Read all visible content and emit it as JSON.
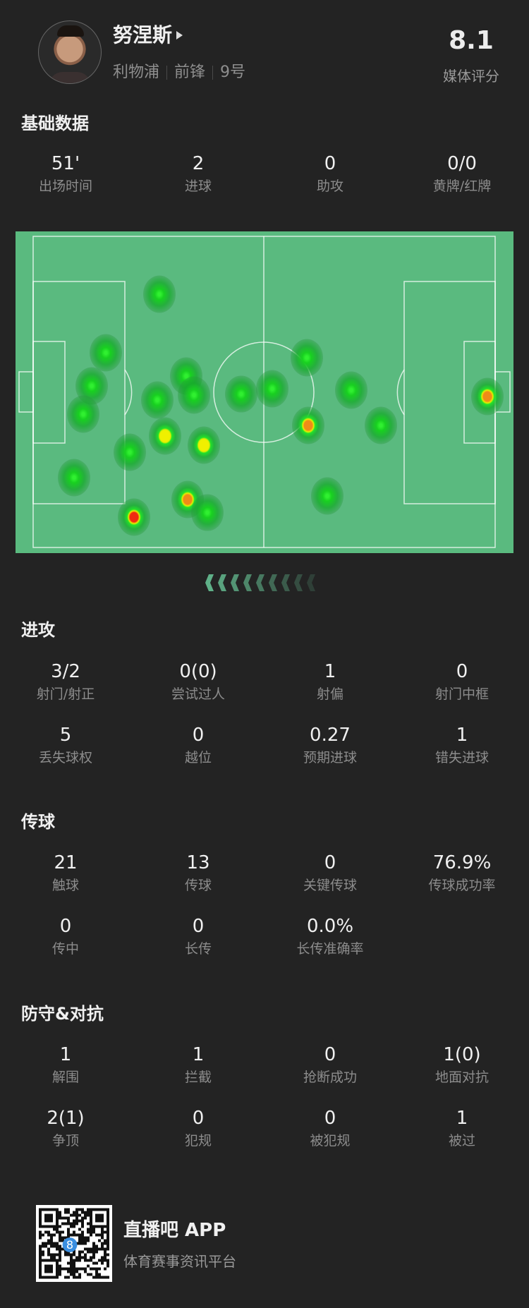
{
  "player": {
    "name": "努涅斯",
    "team": "利物浦",
    "position": "前锋",
    "number": "9号",
    "rating": "8.1",
    "rating_label": "媒体评分"
  },
  "basic": {
    "title": "基础数据",
    "stats": [
      {
        "value": "51'",
        "label": "出场时间"
      },
      {
        "value": "2",
        "label": "进球"
      },
      {
        "value": "0",
        "label": "助攻"
      },
      {
        "value": "0/0",
        "label": "黄牌/红牌"
      }
    ]
  },
  "heatmap": {
    "pitch_color": "#5aba7f",
    "points": [
      {
        "x": 27.4,
        "y": 18.6,
        "intensity": 1
      },
      {
        "x": 15.8,
        "y": 37.4,
        "intensity": 1
      },
      {
        "x": 12.7,
        "y": 48.1,
        "intensity": 1
      },
      {
        "x": 10.9,
        "y": 57.2,
        "intensity": 1
      },
      {
        "x": 8.9,
        "y": 77.6,
        "intensity": 1
      },
      {
        "x": 20.9,
        "y": 69.4,
        "intensity": 1
      },
      {
        "x": 26.9,
        "y": 52.6,
        "intensity": 1
      },
      {
        "x": 33.2,
        "y": 44.9,
        "intensity": 1
      },
      {
        "x": 34.8,
        "y": 51.0,
        "intensity": 1
      },
      {
        "x": 28.6,
        "y": 64.1,
        "intensity": 2
      },
      {
        "x": 36.9,
        "y": 67.2,
        "intensity": 2
      },
      {
        "x": 45.1,
        "y": 50.7,
        "intensity": 1
      },
      {
        "x": 51.8,
        "y": 48.9,
        "intensity": 1
      },
      {
        "x": 59.3,
        "y": 39.0,
        "intensity": 1
      },
      {
        "x": 68.9,
        "y": 49.5,
        "intensity": 1
      },
      {
        "x": 59.6,
        "y": 60.8,
        "intensity": 3
      },
      {
        "x": 75.3,
        "y": 60.8,
        "intensity": 1
      },
      {
        "x": 63.6,
        "y": 83.5,
        "intensity": 1
      },
      {
        "x": 98.3,
        "y": 51.4,
        "intensity": 3
      },
      {
        "x": 33.5,
        "y": 84.6,
        "intensity": 3
      },
      {
        "x": 37.7,
        "y": 88.8,
        "intensity": 1
      },
      {
        "x": 21.8,
        "y": 90.3,
        "intensity": 4
      }
    ]
  },
  "attack": {
    "title": "进攻",
    "stats": [
      {
        "value": "3/2",
        "label": "射门/射正"
      },
      {
        "value": "0(0)",
        "label": "尝试过人"
      },
      {
        "value": "1",
        "label": "射偏"
      },
      {
        "value": "0",
        "label": "射门中框"
      },
      {
        "value": "5",
        "label": "丢失球权"
      },
      {
        "value": "0",
        "label": "越位"
      },
      {
        "value": "0.27",
        "label": "预期进球"
      },
      {
        "value": "1",
        "label": "错失进球"
      }
    ]
  },
  "passing": {
    "title": "传球",
    "stats": [
      {
        "value": "21",
        "label": "触球"
      },
      {
        "value": "13",
        "label": "传球"
      },
      {
        "value": "0",
        "label": "关键传球"
      },
      {
        "value": "76.9%",
        "label": "传球成功率"
      },
      {
        "value": "0",
        "label": "传中"
      },
      {
        "value": "0",
        "label": "长传"
      },
      {
        "value": "0.0%",
        "label": "长传准确率"
      }
    ]
  },
  "defense": {
    "title": "防守&对抗",
    "stats": [
      {
        "value": "1",
        "label": "解围"
      },
      {
        "value": "1",
        "label": "拦截"
      },
      {
        "value": "0",
        "label": "抢断成功"
      },
      {
        "value": "1(0)",
        "label": "地面对抗"
      },
      {
        "value": "2(1)",
        "label": "争顶"
      },
      {
        "value": "0",
        "label": "犯规"
      },
      {
        "value": "0",
        "label": "被犯规"
      },
      {
        "value": "1",
        "label": "被过"
      }
    ]
  },
  "footer": {
    "app_name": "直播吧 APP",
    "tagline": "体育赛事资讯平台",
    "qr_badge": "8"
  }
}
